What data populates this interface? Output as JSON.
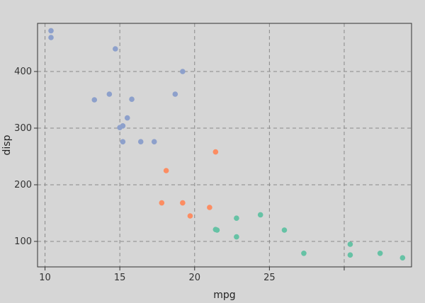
{
  "chart_data": {
    "type": "scatter",
    "title": "",
    "xlabel": "mpg",
    "ylabel": "disp",
    "xlim": [
      9.5,
      34.5
    ],
    "ylim": [
      55,
      485
    ],
    "x_ticks": [
      10,
      15,
      20,
      25,
      30
    ],
    "x_tick_labels": [
      "10",
      "15",
      "20",
      "25",
      ""
    ],
    "y_ticks": [
      100,
      200,
      300,
      400
    ],
    "y_tick_labels": [
      "100",
      "200",
      "300",
      "400"
    ],
    "grid": true,
    "legend": "none",
    "colors": {
      "blue": "#8da0cb",
      "orange": "#fc8d62",
      "green": "#66c2a5"
    },
    "series": [
      {
        "color": "#8da0cb",
        "points": [
          [
            10.4,
            472
          ],
          [
            10.4,
            460
          ],
          [
            14.7,
            440
          ],
          [
            19.2,
            400
          ],
          [
            14.3,
            360
          ],
          [
            18.7,
            360
          ],
          [
            13.3,
            350
          ],
          [
            15.8,
            351
          ],
          [
            15.5,
            318
          ],
          [
            15.2,
            304
          ],
          [
            15.0,
            301
          ],
          [
            15.2,
            276
          ],
          [
            16.4,
            276
          ],
          [
            17.3,
            276
          ]
        ]
      },
      {
        "color": "#fc8d62",
        "points": [
          [
            21.4,
            258
          ],
          [
            18.1,
            225
          ],
          [
            17.8,
            168
          ],
          [
            19.2,
            168
          ],
          [
            19.7,
            145
          ],
          [
            21.0,
            160
          ]
        ]
      },
      {
        "color": "#66c2a5",
        "points": [
          [
            21.4,
            121
          ],
          [
            21.5,
            120
          ],
          [
            22.8,
            141
          ],
          [
            22.8,
            108
          ],
          [
            24.4,
            147
          ],
          [
            26.0,
            120
          ],
          [
            27.3,
            79
          ],
          [
            30.4,
            95
          ],
          [
            30.4,
            76
          ],
          [
            32.4,
            79
          ],
          [
            33.9,
            71
          ]
        ]
      }
    ]
  }
}
